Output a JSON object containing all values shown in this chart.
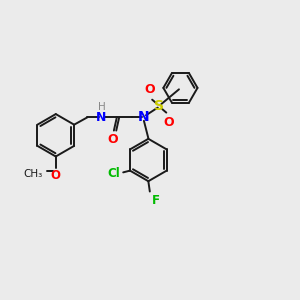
{
  "bg_color": "#ebebeb",
  "bond_color": "#1a1a1a",
  "atom_colors": {
    "O": "#ff0000",
    "N": "#0000ff",
    "Cl": "#00bb00",
    "F": "#00bb00",
    "S": "#cccc00",
    "H": "#888888"
  },
  "figsize": [
    3.0,
    3.0
  ],
  "dpi": 100
}
